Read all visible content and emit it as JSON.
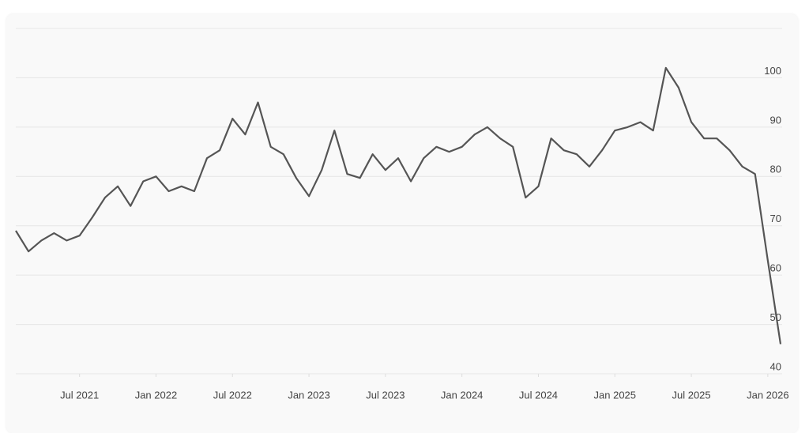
{
  "chart_data": {
    "type": "line",
    "x": [
      "2021-02",
      "2021-03",
      "2021-04",
      "2021-05",
      "2021-06",
      "2021-07",
      "2021-08",
      "2021-09",
      "2021-10",
      "2021-11",
      "2021-12",
      "2022-01",
      "2022-02",
      "2022-03",
      "2022-04",
      "2022-05",
      "2022-06",
      "2022-07",
      "2022-08",
      "2022-09",
      "2022-10",
      "2022-11",
      "2022-12",
      "2023-01",
      "2023-02",
      "2023-03",
      "2023-04",
      "2023-05",
      "2023-06",
      "2023-07",
      "2023-08",
      "2023-09",
      "2023-10",
      "2023-11",
      "2023-12",
      "2024-01",
      "2024-02",
      "2024-03",
      "2024-04",
      "2024-05",
      "2024-06",
      "2024-07",
      "2024-08",
      "2024-09",
      "2024-10",
      "2024-11",
      "2024-12",
      "2025-01",
      "2025-02",
      "2025-03",
      "2025-04",
      "2025-05",
      "2025-06",
      "2025-07",
      "2025-08",
      "2025-09",
      "2025-10",
      "2025-11",
      "2025-12",
      "2026-01",
      "2026-02"
    ],
    "series": [
      {
        "color": "#555555",
        "values": [
          69,
          64.8,
          67,
          68.5,
          67,
          68,
          71.7,
          75.7,
          78,
          74,
          79,
          80,
          77,
          78,
          77,
          83.7,
          85.3,
          91.7,
          88.5,
          95,
          86,
          84.5,
          79.7,
          76,
          81.3,
          89.3,
          80.5,
          79.7,
          84.5,
          81.3,
          83.7,
          79,
          83.7,
          86,
          85,
          86,
          88.5,
          90,
          87.7,
          86,
          75.7,
          78,
          87.7,
          85.3,
          84.5,
          82,
          85.3,
          89.3,
          90,
          91,
          89.3,
          102,
          98,
          91,
          87.7,
          87.7,
          85.3,
          82,
          80.5,
          62.9,
          46
        ]
      }
    ],
    "xlim": [
      "2021-02",
      "2026-02"
    ],
    "xticks": [
      {
        "value": "2021-07",
        "label": "Jul 2021"
      },
      {
        "value": "2022-01",
        "label": "Jan 2022"
      },
      {
        "value": "2022-07",
        "label": "Jul 2022"
      },
      {
        "value": "2023-01",
        "label": "Jan 2023"
      },
      {
        "value": "2023-07",
        "label": "Jul 2023"
      },
      {
        "value": "2024-01",
        "label": "Jan 2024"
      },
      {
        "value": "2024-07",
        "label": "Jul 2024"
      },
      {
        "value": "2025-01",
        "label": "Jan 2025"
      },
      {
        "value": "2025-07",
        "label": "Jul 2025"
      },
      {
        "value": "2026-01",
        "label": "Jan 2026"
      }
    ],
    "ylim": [
      40,
      110
    ],
    "yticks": [
      40,
      50,
      60,
      70,
      80,
      90,
      100
    ],
    "grid": true
  }
}
